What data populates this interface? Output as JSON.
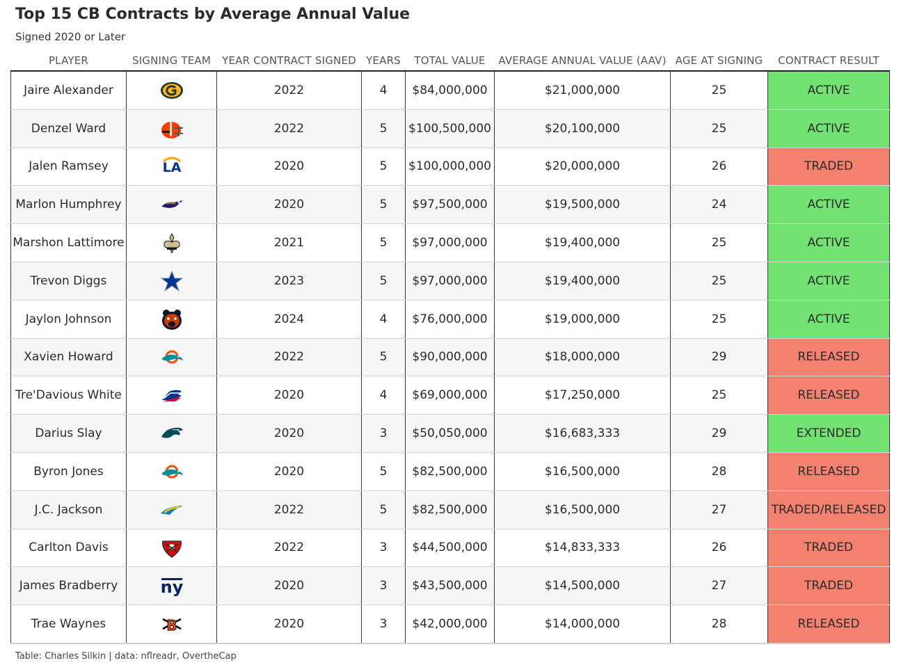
{
  "title": "Top 15 CB Contracts by Average Annual Value",
  "subtitle": "Signed 2020 or Later",
  "columns": [
    "PLAYER",
    "SIGNING TEAM",
    "YEAR CONTRACT SIGNED",
    "YEARS",
    "TOTAL VALUE",
    "AVERAGE ANNUAL VALUE (AAV)",
    "AGE AT SIGNING",
    "CONTRACT RESULT"
  ],
  "result_colors": {
    "ACTIVE": "#72e373",
    "EXTENDED": "#72e373",
    "TRADED": "#f2826f",
    "RELEASED": "#f2826f",
    "TRADED/RELEASED": "#f2826f"
  },
  "rows": [
    {
      "player": "Jaire Alexander",
      "team_icon": "packers-logo-icon",
      "year": "2022",
      "years": "4",
      "total": "$84,000,000",
      "aav": "$21,000,000",
      "age": "25",
      "result": "ACTIVE"
    },
    {
      "player": "Denzel Ward",
      "team_icon": "browns-logo-icon",
      "year": "2022",
      "years": "5",
      "total": "$100,500,000",
      "aav": "$20,100,000",
      "age": "25",
      "result": "ACTIVE"
    },
    {
      "player": "Jalen Ramsey",
      "team_icon": "rams-logo-icon",
      "year": "2020",
      "years": "5",
      "total": "$100,000,000",
      "aav": "$20,000,000",
      "age": "26",
      "result": "TRADED"
    },
    {
      "player": "Marlon Humphrey",
      "team_icon": "ravens-logo-icon",
      "year": "2020",
      "years": "5",
      "total": "$97,500,000",
      "aav": "$19,500,000",
      "age": "24",
      "result": "ACTIVE"
    },
    {
      "player": "Marshon Lattimore",
      "team_icon": "saints-logo-icon",
      "year": "2021",
      "years": "5",
      "total": "$97,000,000",
      "aav": "$19,400,000",
      "age": "25",
      "result": "ACTIVE"
    },
    {
      "player": "Trevon Diggs",
      "team_icon": "cowboys-logo-icon",
      "year": "2023",
      "years": "5",
      "total": "$97,000,000",
      "aav": "$19,400,000",
      "age": "25",
      "result": "ACTIVE"
    },
    {
      "player": "Jaylon Johnson",
      "team_icon": "bears-logo-icon",
      "year": "2024",
      "years": "4",
      "total": "$76,000,000",
      "aav": "$19,000,000",
      "age": "25",
      "result": "ACTIVE"
    },
    {
      "player": "Xavien Howard",
      "team_icon": "dolphins-logo-icon",
      "year": "2022",
      "years": "5",
      "total": "$90,000,000",
      "aav": "$18,000,000",
      "age": "29",
      "result": "RELEASED"
    },
    {
      "player": "Tre'Davious White",
      "team_icon": "bills-logo-icon",
      "year": "2020",
      "years": "4",
      "total": "$69,000,000",
      "aav": "$17,250,000",
      "age": "25",
      "result": "RELEASED"
    },
    {
      "player": "Darius Slay",
      "team_icon": "eagles-logo-icon",
      "year": "2020",
      "years": "3",
      "total": "$50,050,000",
      "aav": "$16,683,333",
      "age": "29",
      "result": "EXTENDED"
    },
    {
      "player": "Byron Jones",
      "team_icon": "dolphins-logo-icon",
      "year": "2020",
      "years": "5",
      "total": "$82,500,000",
      "aav": "$16,500,000",
      "age": "28",
      "result": "RELEASED"
    },
    {
      "player": "J.C. Jackson",
      "team_icon": "chargers-logo-icon",
      "year": "2022",
      "years": "5",
      "total": "$82,500,000",
      "aav": "$16,500,000",
      "age": "27",
      "result": "TRADED/RELEASED"
    },
    {
      "player": "Carlton Davis",
      "team_icon": "buccaneers-logo-icon",
      "year": "2022",
      "years": "3",
      "total": "$44,500,000",
      "aav": "$14,833,333",
      "age": "26",
      "result": "TRADED"
    },
    {
      "player": "James Bradberry",
      "team_icon": "giants-logo-icon",
      "year": "2020",
      "years": "3",
      "total": "$43,500,000",
      "aav": "$14,500,000",
      "age": "27",
      "result": "TRADED"
    },
    {
      "player": "Trae Waynes",
      "team_icon": "bengals-logo-icon",
      "year": "2020",
      "years": "3",
      "total": "$42,000,000",
      "aav": "$14,000,000",
      "age": "28",
      "result": "RELEASED"
    }
  ],
  "caption": "Table: Charles Silkin | data: nflreadr, OvertheCap"
}
